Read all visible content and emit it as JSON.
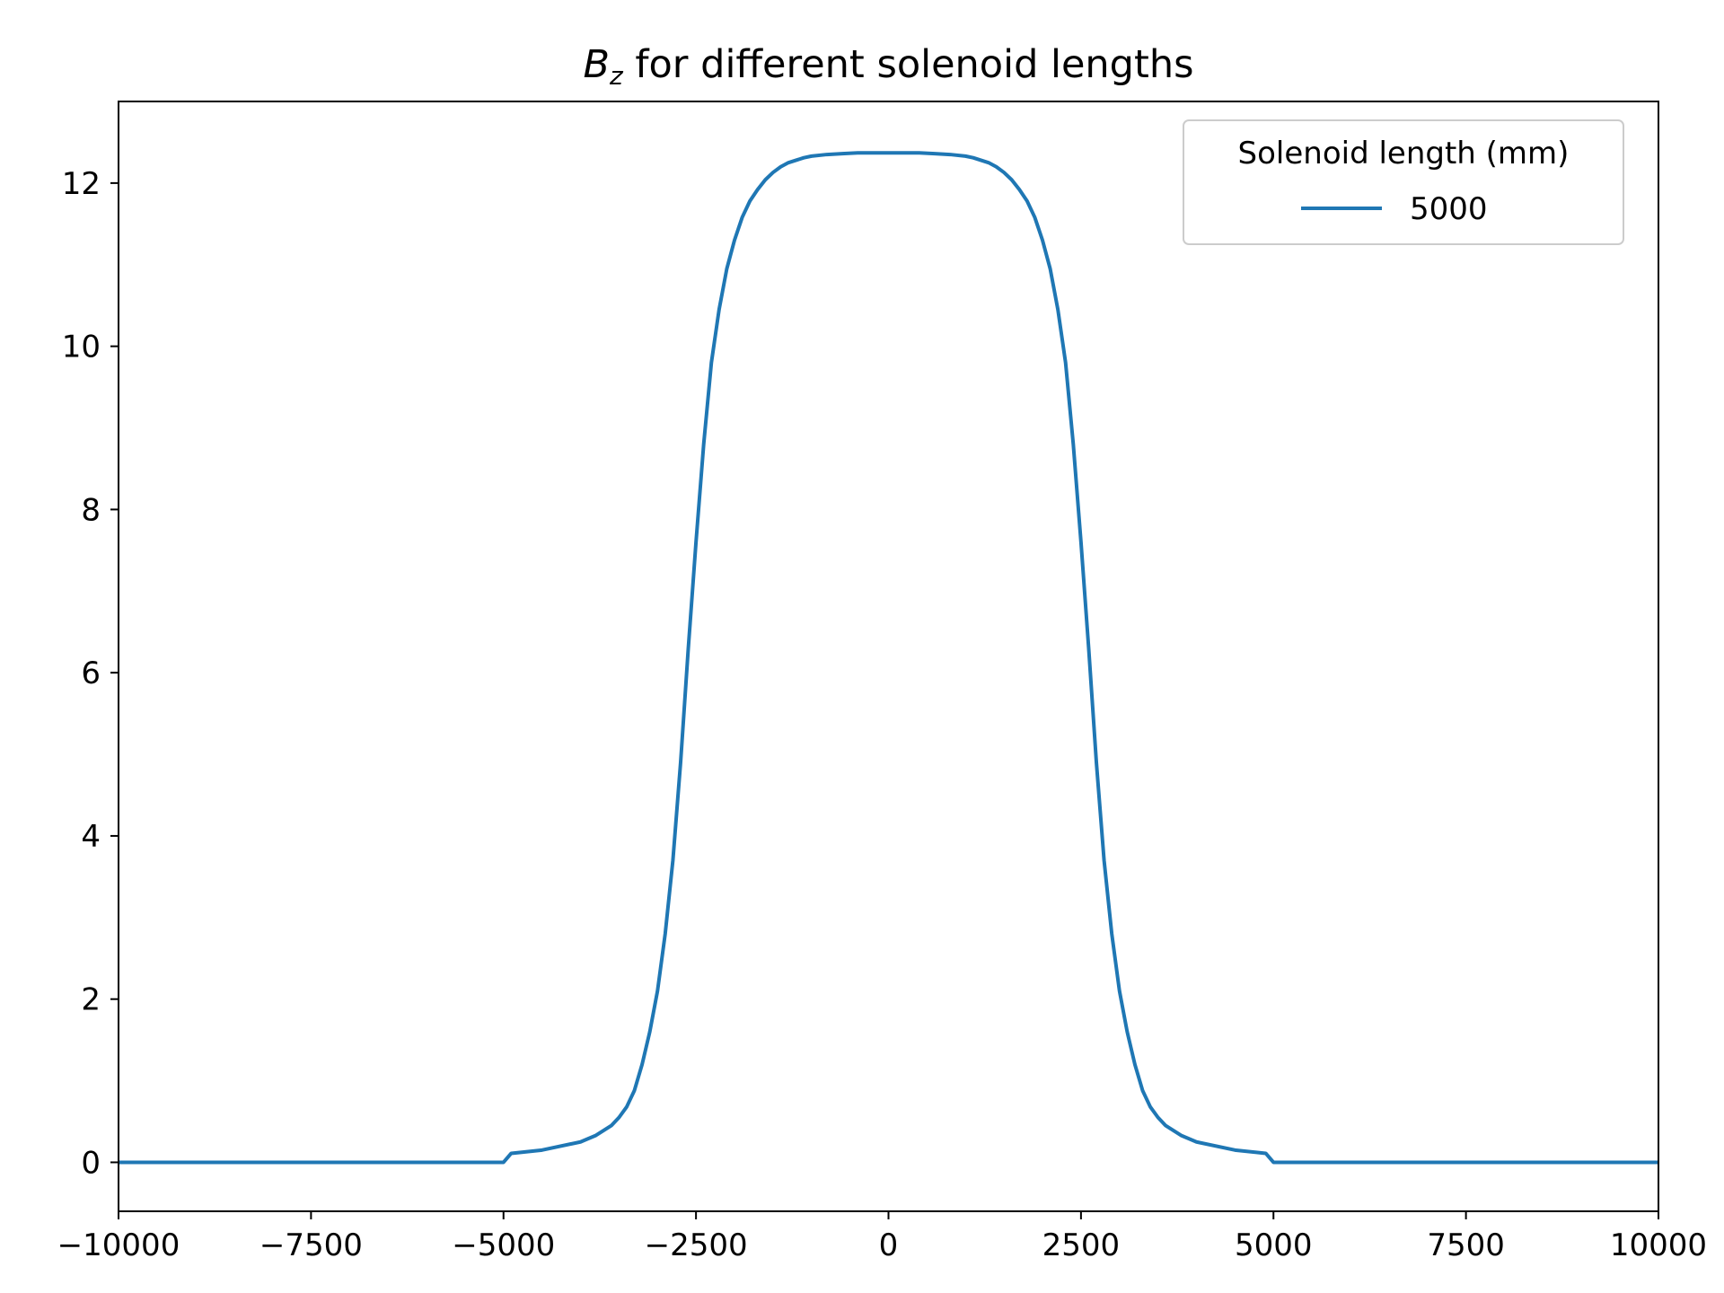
{
  "chart_data": {
    "type": "line",
    "title": {
      "symbol": "B",
      "subscript": "z",
      "rest": " for different solenoid lengths"
    },
    "xlabel": "",
    "ylabel": "",
    "xlim": [
      -10000,
      10000
    ],
    "ylim": [
      -0.6,
      13.0
    ],
    "xticks": [
      -10000,
      -7500,
      -5000,
      -2500,
      0,
      2500,
      5000,
      7500,
      10000
    ],
    "xtick_labels": [
      "−10000",
      "−7500",
      "−5000",
      "−2500",
      "0",
      "2500",
      "5000",
      "7500",
      "10000"
    ],
    "yticks": [
      0,
      2,
      4,
      6,
      8,
      10,
      12
    ],
    "ytick_labels": [
      "0",
      "2",
      "4",
      "6",
      "8",
      "10",
      "12"
    ],
    "grid": false,
    "legend": {
      "title": "Solenoid length (mm)",
      "position": "top-right"
    },
    "series": [
      {
        "name": "5000",
        "color": "#1f77b4",
        "x": [
          -10000,
          -5100,
          -5000,
          -4900,
          -4500,
          -4000,
          -3800,
          -3600,
          -3500,
          -3400,
          -3300,
          -3200,
          -3100,
          -3000,
          -2900,
          -2800,
          -2700,
          -2600,
          -2500,
          -2400,
          -2300,
          -2200,
          -2100,
          -2000,
          -1900,
          -1800,
          -1700,
          -1600,
          -1500,
          -1400,
          -1300,
          -1200,
          -1100,
          -1000,
          -800,
          -600,
          -400,
          -200,
          0,
          200,
          400,
          600,
          800,
          1000,
          1100,
          1200,
          1300,
          1400,
          1500,
          1600,
          1700,
          1800,
          1900,
          2000,
          2100,
          2200,
          2300,
          2400,
          2500,
          2600,
          2700,
          2800,
          2900,
          3000,
          3100,
          3200,
          3300,
          3400,
          3500,
          3600,
          3800,
          4000,
          4500,
          4900,
          5000,
          5100,
          10000
        ],
        "y": [
          0.0,
          0.0,
          0.0,
          0.11,
          0.15,
          0.25,
          0.33,
          0.45,
          0.55,
          0.68,
          0.88,
          1.2,
          1.6,
          2.1,
          2.8,
          3.7,
          4.9,
          6.3,
          7.6,
          8.8,
          9.8,
          10.45,
          10.95,
          11.3,
          11.58,
          11.78,
          11.92,
          12.04,
          12.13,
          12.2,
          12.25,
          12.28,
          12.31,
          12.33,
          12.35,
          12.36,
          12.37,
          12.37,
          12.37,
          12.37,
          12.37,
          12.36,
          12.35,
          12.33,
          12.31,
          12.28,
          12.25,
          12.2,
          12.13,
          12.04,
          11.92,
          11.78,
          11.58,
          11.3,
          10.95,
          10.45,
          9.8,
          8.8,
          7.6,
          6.3,
          4.9,
          3.7,
          2.8,
          2.1,
          1.6,
          1.2,
          0.88,
          0.68,
          0.55,
          0.45,
          0.33,
          0.25,
          0.15,
          0.11,
          0.0,
          0.0,
          0.0
        ]
      }
    ]
  }
}
